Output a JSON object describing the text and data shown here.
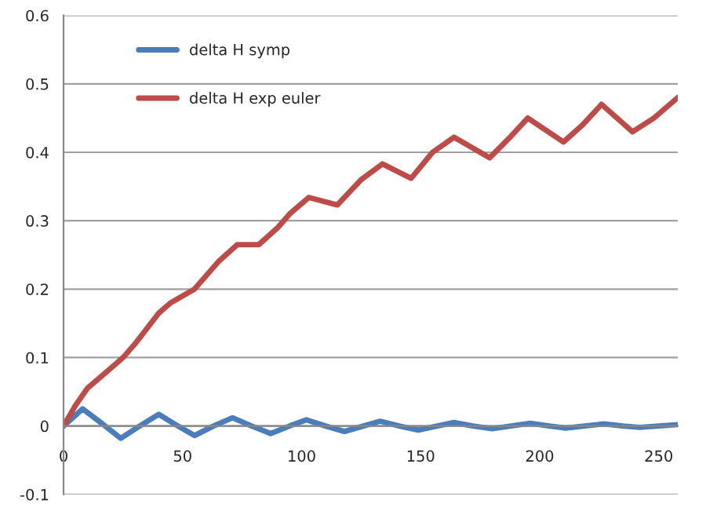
{
  "chart_data": {
    "type": "line",
    "xlim": [
      0,
      258
    ],
    "ylim": [
      -0.1,
      0.6
    ],
    "xticks": [
      0,
      50,
      100,
      150,
      200,
      250
    ],
    "yticks": [
      -0.1,
      0,
      0.1,
      0.2,
      0.3,
      0.4,
      0.5,
      0.6
    ],
    "grid": "y",
    "legend": "top left",
    "marker": "none",
    "line_style": "solid",
    "series": [
      {
        "name": "delta H symp",
        "color": "#4a7ebb",
        "x": [
          0,
          8,
          16,
          24,
          32,
          40,
          48,
          55,
          63,
          71,
          79,
          87,
          95,
          102,
          110,
          118,
          126,
          133,
          141,
          149,
          157,
          164,
          172,
          180,
          188,
          196,
          204,
          211,
          219,
          227,
          235,
          242,
          250,
          258
        ],
        "values": [
          0,
          0.025,
          0.004,
          -0.018,
          0,
          0.017,
          0,
          -0.014,
          0,
          0.012,
          0,
          -0.011,
          0,
          0.009,
          0,
          -0.008,
          0,
          0.007,
          0,
          -0.006,
          0,
          0.005,
          0,
          -0.004,
          0,
          0.004,
          0,
          -0.003,
          0,
          0.003,
          0,
          -0.002,
          0,
          0.002
        ]
      },
      {
        "name": "delta H exp euler",
        "color": "#be4b48",
        "x": [
          0,
          5,
          10,
          20,
          25,
          30,
          40,
          45,
          50,
          55,
          65,
          73,
          82,
          90,
          95,
          103,
          115,
          125,
          134,
          146,
          155,
          164,
          179,
          187,
          195,
          210,
          218,
          226,
          239,
          248,
          258
        ],
        "values": [
          0,
          0.03,
          0.055,
          0.085,
          0.1,
          0.12,
          0.165,
          0.18,
          0.19,
          0.2,
          0.24,
          0.265,
          0.265,
          0.29,
          0.31,
          0.334,
          0.323,
          0.36,
          0.383,
          0.362,
          0.4,
          0.422,
          0.392,
          0.42,
          0.45,
          0.415,
          0.44,
          0.47,
          0.43,
          0.45,
          0.48
        ]
      }
    ]
  }
}
